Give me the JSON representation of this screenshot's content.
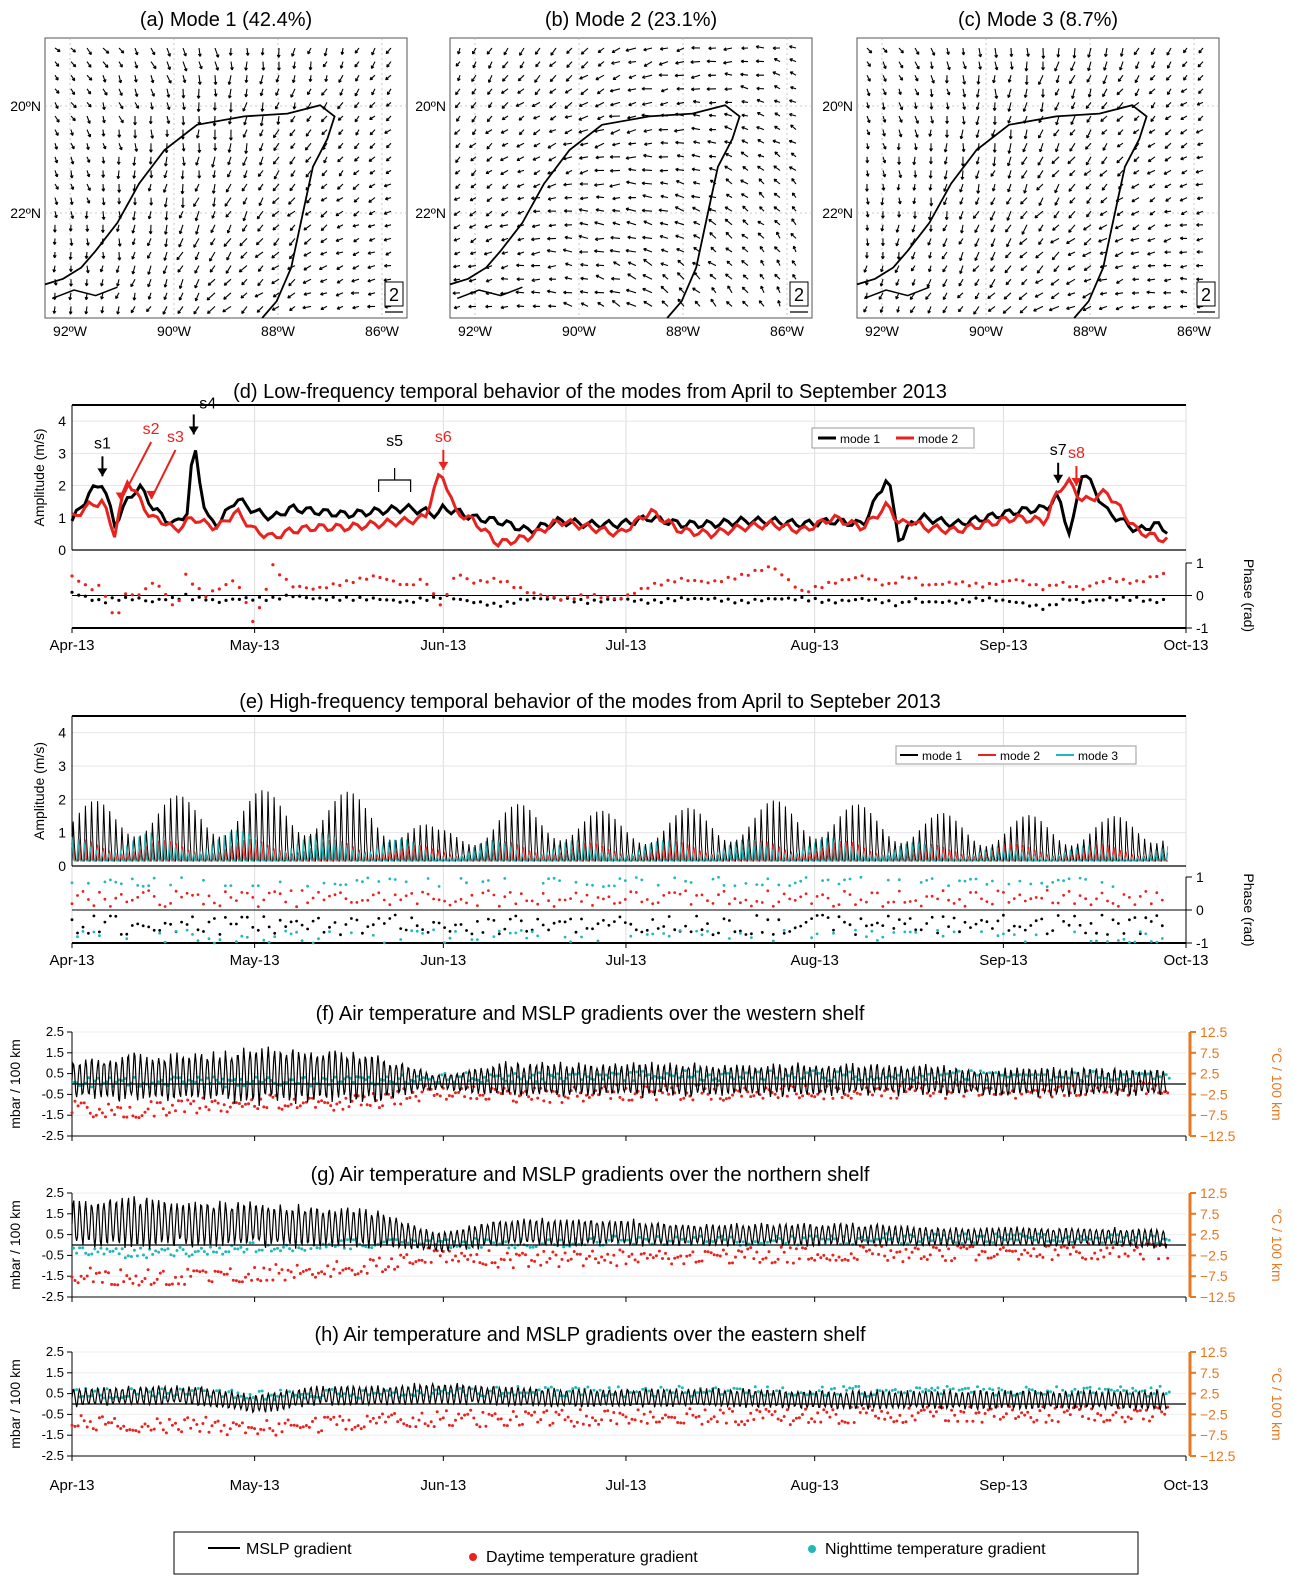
{
  "maps": {
    "panels": [
      {
        "title": "(a) Mode 1 (42.4%)",
        "seed": 11
      },
      {
        "title": "(b) Mode 2 (23.1%)",
        "seed": 23
      },
      {
        "title": "(c) Mode 3 (8.7%)",
        "seed": 37
      }
    ],
    "lon_labels": [
      "92ºW",
      "90ºW",
      "88ºW",
      "86ºW"
    ],
    "lat_labels": [
      "20ºN",
      "22ºN"
    ],
    "scale_label": "2"
  },
  "months": [
    "Apr-13",
    "May-13",
    "Jun-13",
    "Jul-13",
    "Aug-13",
    "Sep-13",
    "Oct-13"
  ],
  "colors": {
    "mode1": "#000000",
    "mode2": "#e8231f",
    "mode3": "#22b8b8",
    "day": "#e8231f",
    "night": "#22b8b8",
    "right_axis": "#e87722"
  },
  "chart_data": [
    {
      "id": "d",
      "type": "line",
      "title": "(d) Low-frequency temporal behavior of the modes from April to September 2013",
      "ylabel": "Amplitude (m/s)",
      "ylim": [
        0,
        4.5
      ],
      "yticks": [
        "0",
        "1",
        "2",
        "3",
        "4"
      ],
      "phase_ylabel": "Phase (rad)",
      "phase_ylim": [
        -1,
        1
      ],
      "phase_ticks": [
        "-1",
        "0",
        "1"
      ],
      "legend": [
        "mode 1",
        "mode 2"
      ],
      "x_days": [
        0,
        3,
        5,
        7,
        9,
        11,
        13,
        15,
        17,
        19,
        20,
        22,
        24,
        27,
        30,
        33,
        36,
        40,
        45,
        50,
        55,
        58,
        60,
        61,
        63,
        66,
        70,
        75,
        80,
        85,
        90,
        95,
        100,
        105,
        110,
        115,
        120,
        125,
        130,
        134,
        136,
        138,
        140,
        145,
        150,
        155,
        160,
        162,
        164,
        166,
        170,
        175,
        178,
        180
      ],
      "series": [
        {
          "name": "mode 1",
          "values": [
            0.9,
            1.8,
            2.1,
            0.8,
            1.5,
            2.0,
            1.4,
            1.0,
            0.8,
            1.2,
            3.4,
            1.0,
            0.8,
            1.6,
            1.2,
            1.0,
            1.3,
            1.2,
            1.1,
            1.2,
            1.3,
            1.2,
            1.1,
            1.3,
            1.2,
            1.0,
            0.9,
            0.6,
            0.9,
            0.8,
            0.8,
            1.0,
            0.8,
            0.8,
            0.9,
            0.9,
            0.8,
            0.9,
            0.8,
            2.3,
            0.2,
            0.9,
            1.0,
            0.8,
            1.0,
            1.2,
            1.3,
            1.7,
            0.4,
            2.5,
            1.2,
            0.6,
            0.8,
            0.6
          ]
        },
        {
          "name": "mode 2",
          "values": [
            1.0,
            1.4,
            1.5,
            0.5,
            2.2,
            1.6,
            1.0,
            0.9,
            0.6,
            0.9,
            1.0,
            0.8,
            0.7,
            1.2,
            0.6,
            0.4,
            0.6,
            0.7,
            0.7,
            0.8,
            0.9,
            1.0,
            2.2,
            2.3,
            1.2,
            0.9,
            0.2,
            0.4,
            0.9,
            0.7,
            0.5,
            1.2,
            0.6,
            0.5,
            0.7,
            0.8,
            0.6,
            1.0,
            0.7,
            1.4,
            0.8,
            0.9,
            0.7,
            0.6,
            0.8,
            1.0,
            0.9,
            1.9,
            2.1,
            1.5,
            1.8,
            0.6,
            0.4,
            0.3
          ]
        }
      ],
      "phase_series": [
        {
          "name": "mode 1",
          "values": [
            0.1,
            -0.1,
            -0.2,
            -0.1,
            -0.1,
            -0.1,
            -0.2,
            -0.1,
            -0.1,
            0.0,
            -0.1,
            -0.1,
            -0.2,
            -0.1,
            -0.1,
            -0.1,
            0.0,
            -0.1,
            -0.1,
            -0.1,
            -0.2,
            -0.1,
            -0.1,
            0.0,
            -0.1,
            -0.2,
            -0.3,
            -0.1,
            -0.1,
            -0.2,
            -0.1,
            -0.2,
            -0.1,
            -0.1,
            -0.2,
            -0.1,
            -0.1,
            -0.2,
            -0.1,
            -0.2,
            -0.3,
            -0.1,
            -0.2,
            -0.2,
            -0.1,
            -0.2,
            -0.4,
            -0.2,
            -0.1,
            -0.2,
            -0.1,
            -0.1,
            -0.2,
            -0.1
          ]
        },
        {
          "name": "mode 2",
          "values": [
            0.6,
            0.2,
            0.3,
            -0.8,
            0.1,
            0.0,
            0.4,
            0.2,
            -0.5,
            0.8,
            0.3,
            0.0,
            0.2,
            0.5,
            -0.9,
            0.9,
            0.3,
            0.2,
            0.4,
            0.6,
            0.3,
            0.5,
            -0.2,
            -0.3,
            0.7,
            0.4,
            0.5,
            0.1,
            -0.1,
            0.0,
            -0.1,
            0.3,
            0.5,
            0.4,
            0.6,
            0.9,
            0.1,
            0.4,
            0.6,
            0.3,
            0.5,
            0.6,
            0.3,
            0.4,
            0.3,
            0.5,
            0.2,
            0.4,
            0.3,
            0.2,
            0.5,
            0.4,
            0.6,
            0.7
          ]
        }
      ],
      "annotations": [
        {
          "label": "s1",
          "day": 5,
          "color": "#000000"
        },
        {
          "label": "s2",
          "day": 8,
          "color": "#e8231f"
        },
        {
          "label": "s3",
          "day": 13,
          "color": "#e8231f"
        },
        {
          "label": "s4",
          "day": 20,
          "color": "#000000"
        },
        {
          "label": "s5",
          "day": 53,
          "color": "#000000"
        },
        {
          "label": "s6",
          "day": 61,
          "color": "#e8231f"
        },
        {
          "label": "s7",
          "day": 162,
          "color": "#000000"
        },
        {
          "label": "s8",
          "day": 165,
          "color": "#e8231f"
        }
      ]
    },
    {
      "id": "e",
      "type": "line",
      "title": "(e) High-frequency temporal behavior of the modes from April to Septeber 2013",
      "ylabel": "Amplitude (m/s)",
      "ylim": [
        0,
        4.5
      ],
      "yticks": [
        "0",
        "1",
        "2",
        "3",
        "4"
      ],
      "phase_ylabel": "Phase (rad)",
      "phase_ylim": [
        -1,
        1
      ],
      "phase_ticks": [
        "-1",
        "0",
        "1"
      ],
      "legend": [
        "mode 1",
        "mode 2",
        "mode 3"
      ],
      "cycle": "diurnal",
      "envelope_days": [
        0,
        10,
        20,
        30,
        40,
        50,
        60,
        70,
        80,
        90,
        100,
        110,
        120,
        130,
        140,
        150,
        160,
        170,
        180
      ],
      "series": [
        {
          "name": "mode 1",
          "peak": [
            2.0,
            2.4,
            2.3,
            2.5,
            2.5,
            2.4,
            1.2,
            2.0,
            2.1,
            1.7,
            1.9,
            2.0,
            2.3,
            2.0,
            1.8,
            1.6,
            1.7,
            1.6,
            1.9
          ]
        },
        {
          "name": "mode 2",
          "peak": [
            1.0,
            1.0,
            0.9,
            1.0,
            1.0,
            0.9,
            0.7,
            0.9,
            0.9,
            0.8,
            0.9,
            0.9,
            1.0,
            0.9,
            0.8,
            0.8,
            0.8,
            0.8,
            0.8
          ]
        },
        {
          "name": "mode 3",
          "peak": [
            0.9,
            1.0,
            1.0,
            1.1,
            1.0,
            1.0,
            0.6,
            0.8,
            0.8,
            0.7,
            0.8,
            0.8,
            0.9,
            0.8,
            0.7,
            0.6,
            0.6,
            0.6,
            0.6
          ]
        }
      ]
    },
    {
      "id": "f",
      "type": "line",
      "title": "(f) Air temperature and MSLP gradients over the western shelf",
      "ylabel": "mbar / 100 km",
      "ylim": [
        -2.5,
        2.5
      ],
      "yticks": [
        "2.5",
        "1.5",
        "0.5",
        "-0.5",
        "-1.5",
        "-2.5"
      ],
      "ylabel_right": "°C / 100 km",
      "ylim_right": [
        -12.5,
        12.5
      ],
      "yticks_right": [
        "12.5",
        "7.5",
        "2.5",
        "−2.5",
        "−7.5",
        "−12.5"
      ],
      "envelope_days": [
        0,
        10,
        20,
        30,
        40,
        50,
        60,
        70,
        80,
        90,
        100,
        110,
        120,
        130,
        140,
        150,
        160,
        170,
        180
      ],
      "mslp": {
        "mean": [
          0.2,
          0.3,
          0.3,
          0.4,
          0.4,
          0.3,
          0.1,
          0.2,
          0.2,
          0.2,
          0.2,
          0.2,
          0.2,
          0.2,
          0.2,
          0.1,
          0.1,
          0.1,
          0.1
        ],
        "amp": [
          1.0,
          1.3,
          1.2,
          1.5,
          1.4,
          1.3,
          0.4,
          0.9,
          0.9,
          0.9,
          0.9,
          0.8,
          0.9,
          0.8,
          0.8,
          0.7,
          0.8,
          0.7,
          0.7
        ]
      },
      "daytime": {
        "mean": [
          -6.0,
          -6.5,
          -5.5,
          -4.5,
          -4.5,
          -4.0,
          -2.0,
          -2.5,
          -2.5,
          -2.0,
          -2.0,
          -2.0,
          -2.0,
          -1.5,
          -1.5,
          -1.5,
          -1.5,
          -1.0,
          -1.0
        ]
      },
      "nighttime": {
        "mean": [
          0.5,
          0.5,
          0.5,
          0.5,
          0.5,
          1.0,
          1.5,
          1.5,
          1.5,
          2.0,
          2.0,
          2.0,
          2.0,
          2.0,
          2.0,
          2.0,
          2.0,
          2.0,
          2.0
        ]
      }
    },
    {
      "id": "g",
      "type": "line",
      "title": "(g) Air temperature and MSLP gradients over the northern shelf",
      "ylabel": "mbar / 100 km",
      "ylim": [
        -2.5,
        2.5
      ],
      "yticks": [
        "2.5",
        "1.5",
        "0.5",
        "-0.5",
        "-1.5",
        "-2.5"
      ],
      "ylabel_right": "°C / 100 km",
      "ylim_right": [
        -12.5,
        12.5
      ],
      "yticks_right": [
        "12.5",
        "7.5",
        "2.5",
        "−2.5",
        "−7.5",
        "−12.5"
      ],
      "envelope_days": [
        0,
        10,
        20,
        30,
        40,
        50,
        60,
        70,
        80,
        90,
        100,
        110,
        120,
        130,
        140,
        150,
        160,
        170,
        180
      ],
      "mslp": {
        "mean": [
          1.0,
          1.1,
          1.0,
          1.0,
          0.9,
          0.8,
          0.1,
          0.6,
          0.6,
          0.6,
          0.5,
          0.5,
          0.5,
          0.5,
          0.4,
          0.4,
          0.4,
          0.4,
          0.3
        ]
      },
      "daytime": {
        "mean": [
          -7.0,
          -8.0,
          -7.5,
          -7.0,
          -6.0,
          -5.0,
          -2.0,
          -3.5,
          -3.5,
          -3.0,
          -3.0,
          -2.5,
          -2.5,
          -2.0,
          -2.0,
          -2.0,
          -2.0,
          -1.5,
          -1.5
        ]
      },
      "nighttime": {
        "mean": [
          -1.0,
          -2.0,
          -1.5,
          -0.5,
          0.0,
          0.5,
          0.5,
          0.5,
          0.5,
          1.0,
          1.0,
          1.0,
          1.0,
          1.5,
          1.5,
          1.5,
          1.5,
          1.5,
          1.5
        ]
      }
    },
    {
      "id": "h",
      "type": "line",
      "title": "(h) Air temperature and MSLP gradients over the eastern shelf",
      "ylabel": "mbar / 100 km",
      "ylim": [
        -2.5,
        2.5
      ],
      "yticks": [
        "2.5",
        "1.5",
        "0.5",
        "-0.5",
        "-1.5",
        "-2.5"
      ],
      "ylabel_right": "°C / 100 km",
      "ylim_right": [
        -12.5,
        12.5
      ],
      "yticks_right": [
        "12.5",
        "7.5",
        "2.5",
        "−2.5",
        "−7.5",
        "−12.5"
      ],
      "envelope_days": [
        0,
        10,
        20,
        30,
        40,
        50,
        60,
        70,
        80,
        90,
        100,
        110,
        120,
        130,
        140,
        150,
        160,
        170,
        180
      ],
      "mslp": {
        "mean": [
          0.3,
          0.4,
          0.4,
          0.0,
          0.4,
          0.4,
          0.5,
          0.4,
          0.3,
          0.3,
          0.3,
          0.3,
          0.2,
          0.2,
          0.2,
          0.2,
          0.2,
          0.2,
          0.2
        ]
      },
      "daytime": {
        "mean": [
          -4.5,
          -5.0,
          -5.0,
          -6.0,
          -5.0,
          -4.5,
          -3.5,
          -3.5,
          -3.5,
          -3.0,
          -3.0,
          -3.0,
          -3.0,
          -2.5,
          -2.5,
          -2.5,
          -2.5,
          -2.5,
          -2.5
        ]
      },
      "nighttime": {
        "mean": [
          2.5,
          2.5,
          2.5,
          2.0,
          2.5,
          2.5,
          3.0,
          3.0,
          3.0,
          3.0,
          3.0,
          3.0,
          3.0,
          3.0,
          3.0,
          3.0,
          3.0,
          3.0,
          3.0
        ]
      }
    }
  ],
  "bottom_legend": [
    "MSLP gradient",
    "Daytime temperature gradient",
    "Nighttime temperature gradient"
  ]
}
